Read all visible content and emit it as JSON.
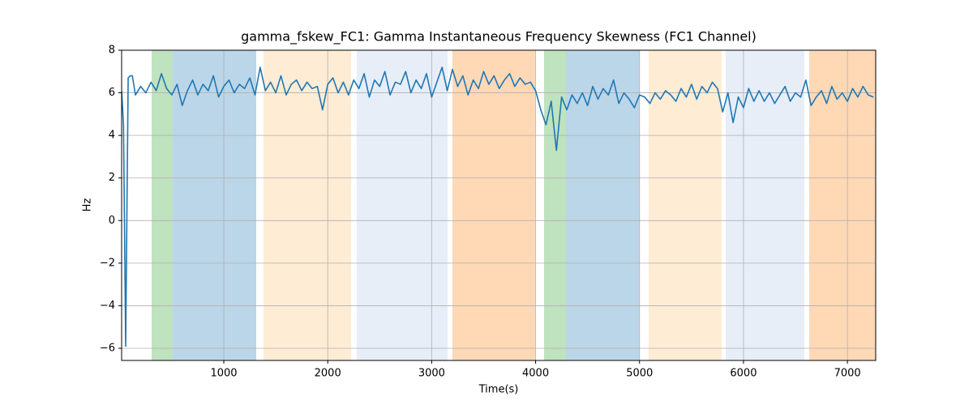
{
  "chart_data": {
    "type": "line",
    "title": "gamma_fskew_FC1: Gamma Instantaneous Frequency Skewness (FC1 Channel)",
    "xlabel": "Time(s)",
    "ylabel": "Hz",
    "xlim": [
      17,
      7272
    ],
    "ylim": [
      -6.57,
      8.0
    ],
    "xticks": [
      1000,
      2000,
      3000,
      4000,
      5000,
      6000,
      7000
    ],
    "yticks": [
      {
        "value": -6,
        "label": "−6"
      },
      {
        "value": -4,
        "label": "−4"
      },
      {
        "value": -2,
        "label": "−2"
      },
      0,
      2,
      4,
      6,
      8
    ],
    "grid": true,
    "spans": [
      {
        "start": 306,
        "end": 508,
        "color": "#2ca02c"
      },
      {
        "start": 508,
        "end": 1312,
        "color": "#1f77b4"
      },
      {
        "start": 1382,
        "end": 2225,
        "color": "#fdbf6f"
      },
      {
        "start": 2279,
        "end": 3153,
        "color": "#aec7e8"
      },
      {
        "start": 3200,
        "end": 3995,
        "color": "#ff7f0e"
      },
      {
        "start": 4081,
        "end": 4292,
        "color": "#2ca02c"
      },
      {
        "start": 4292,
        "end": 5001,
        "color": "#1f77b4"
      },
      {
        "start": 5087,
        "end": 5789,
        "color": "#fdbf6f"
      },
      {
        "start": 5828,
        "end": 6585,
        "color": "#aec7e8"
      },
      {
        "start": 6632,
        "end": 7272,
        "color": "#ff7f0e"
      }
    ],
    "x": [
      17,
      35,
      56,
      80,
      100,
      120,
      150,
      200,
      250,
      300,
      350,
      400,
      450,
      500,
      550,
      600,
      650,
      700,
      750,
      800,
      850,
      900,
      950,
      1000,
      1050,
      1100,
      1150,
      1200,
      1250,
      1300,
      1350,
      1400,
      1450,
      1500,
      1550,
      1600,
      1650,
      1700,
      1750,
      1800,
      1850,
      1900,
      1950,
      2000,
      2050,
      2100,
      2150,
      2200,
      2250,
      2300,
      2350,
      2400,
      2450,
      2500,
      2550,
      2600,
      2650,
      2700,
      2750,
      2800,
      2850,
      2900,
      2950,
      3000,
      3050,
      3100,
      3150,
      3200,
      3250,
      3300,
      3350,
      3400,
      3450,
      3500,
      3550,
      3600,
      3650,
      3700,
      3750,
      3800,
      3850,
      3900,
      3950,
      4000,
      4050,
      4100,
      4150,
      4200,
      4250,
      4300,
      4350,
      4400,
      4450,
      4500,
      4550,
      4600,
      4650,
      4700,
      4750,
      4800,
      4850,
      4900,
      4950,
      5000,
      5050,
      5100,
      5150,
      5200,
      5250,
      5300,
      5350,
      5400,
      5450,
      5500,
      5550,
      5600,
      5650,
      5700,
      5750,
      5800,
      5850,
      5900,
      5950,
      6000,
      6050,
      6100,
      6150,
      6200,
      6250,
      6300,
      6350,
      6400,
      6450,
      6500,
      6550,
      6600,
      6650,
      6700,
      6750,
      6800,
      6850,
      6900,
      6950,
      7000,
      7050,
      7100,
      7150,
      7200,
      7250
    ],
    "series": [
      {
        "color": "#1f77b4",
        "values": [
          6.1,
          4.5,
          -5.9,
          6.7,
          6.8,
          6.8,
          5.9,
          6.3,
          6.0,
          6.5,
          6.1,
          6.9,
          6.2,
          5.9,
          6.4,
          5.4,
          6.1,
          6.6,
          5.9,
          6.4,
          6.1,
          6.8,
          5.8,
          6.3,
          6.6,
          6.0,
          6.4,
          6.2,
          6.7,
          5.9,
          7.2,
          6.1,
          6.5,
          6.0,
          6.8,
          5.9,
          6.4,
          6.6,
          6.1,
          6.5,
          6.2,
          6.3,
          5.2,
          6.4,
          6.7,
          6.0,
          6.5,
          5.9,
          6.6,
          6.2,
          6.9,
          5.8,
          6.6,
          6.3,
          7.0,
          5.9,
          6.5,
          6.4,
          7.0,
          6.0,
          6.6,
          6.2,
          6.9,
          5.8,
          6.5,
          7.2,
          6.1,
          7.1,
          6.3,
          6.8,
          5.9,
          6.6,
          6.2,
          7.0,
          6.4,
          6.8,
          6.2,
          6.6,
          6.9,
          6.3,
          6.7,
          6.4,
          6.5,
          6.1,
          5.2,
          4.5,
          5.6,
          3.3,
          5.8,
          5.2,
          5.9,
          5.5,
          6.0,
          5.4,
          6.3,
          5.7,
          6.2,
          5.9,
          6.6,
          5.5,
          6.0,
          5.7,
          5.3,
          5.9,
          5.8,
          5.5,
          6.0,
          5.7,
          6.1,
          5.9,
          5.6,
          6.2,
          5.8,
          6.4,
          5.7,
          6.3,
          6.0,
          6.5,
          6.2,
          5.1,
          6.0,
          4.6,
          5.8,
          5.3,
          6.2,
          5.6,
          6.1,
          5.6,
          6.0,
          5.5,
          5.9,
          6.3,
          5.6,
          6.0,
          5.8,
          6.6,
          5.4,
          5.8,
          6.1,
          5.5,
          6.3,
          5.7,
          6.0,
          5.6,
          6.2,
          5.8,
          6.3,
          5.9,
          5.8
        ]
      }
    ]
  }
}
